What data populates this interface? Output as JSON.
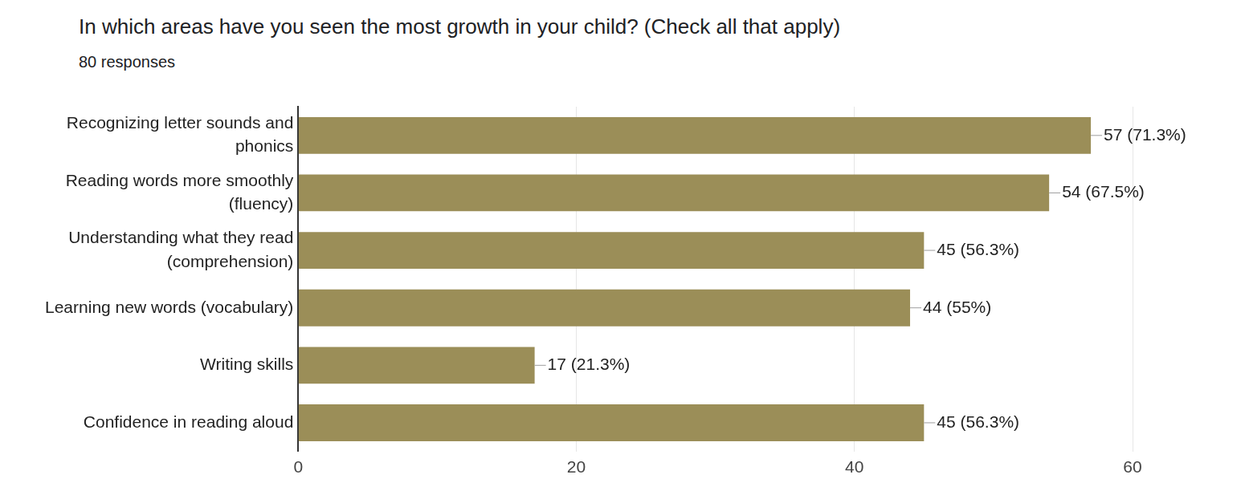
{
  "chart_data": {
    "type": "bar",
    "orientation": "horizontal",
    "title": "In which areas have you seen the most growth in your child? (Check all that apply)",
    "subtitle": "80 responses",
    "categories": [
      "Recognizing letter sounds and phonics",
      "Reading words more smoothly (fluency)",
      "Understanding what they read (comprehension)",
      "Learning new words (vocabulary)",
      "Writing skills",
      "Confidence in reading aloud"
    ],
    "values": [
      57,
      54,
      45,
      44,
      17,
      45
    ],
    "value_labels": [
      "57 (71.3%)",
      "54 (67.5%)",
      "45 (56.3%)",
      "44 (55%)",
      "17 (21.3%)",
      "45 (56.3%)"
    ],
    "data_labels": true,
    "color": "#9b8e58",
    "xlim": [
      0,
      60
    ],
    "xticks": [
      0,
      20,
      40,
      60
    ],
    "grid": true
  }
}
